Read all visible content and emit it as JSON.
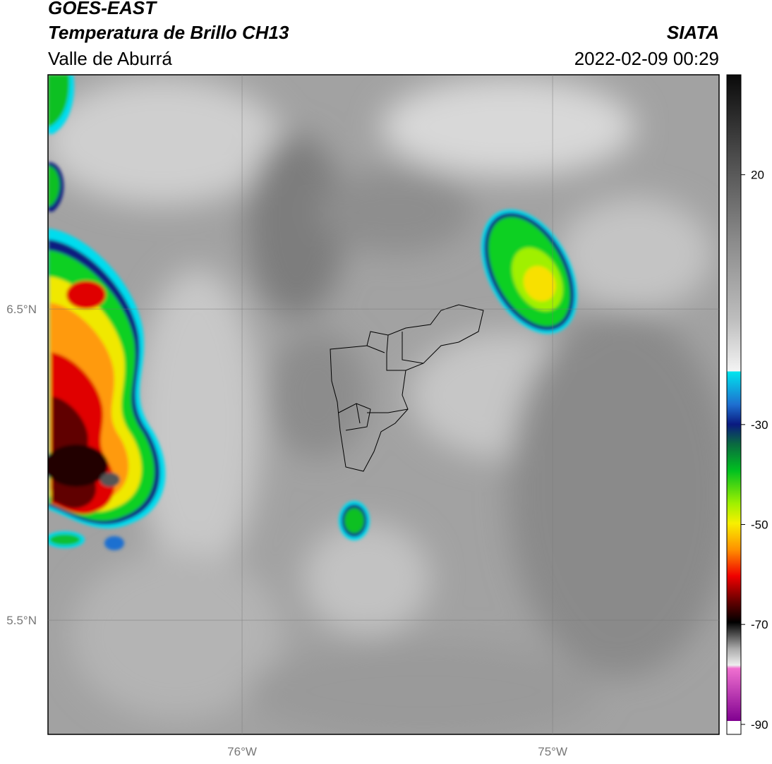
{
  "header": {
    "title": "GOES-EAST",
    "subtitle": "Temperatura de Brillo CH13",
    "region": "Valle de Aburrá",
    "source": "SIATA",
    "datetime": "2022-02-09 00:29"
  },
  "map": {
    "lon_range": [
      -76.625,
      -74.464
    ],
    "lat_range": [
      5.133,
      7.253
    ],
    "lon_ticks": [
      {
        "value": -76,
        "label": "76°W"
      },
      {
        "value": -75,
        "label": "75°W"
      }
    ],
    "lat_ticks": [
      {
        "value": 6.5,
        "label": "6.5°N"
      },
      {
        "value": 5.5,
        "label": "5.5°N"
      }
    ]
  },
  "colorbar": {
    "range": [
      -92,
      40
    ],
    "ticks": [
      20,
      -30,
      -50,
      -70,
      -90
    ]
  }
}
